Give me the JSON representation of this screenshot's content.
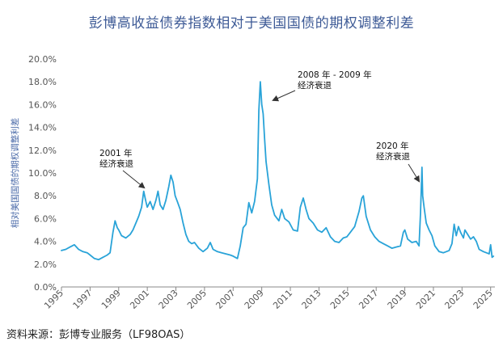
{
  "title": "彭博高收益债券指数相对于美国国债的期权调整利差",
  "source": "资料来源：彭博专业服务（LF98OAS）",
  "colors": {
    "line": "#29a3d8",
    "title": "#3d5a96",
    "annotation": "#111111",
    "axis": "#555555",
    "ylabel": "#4a6aa8"
  },
  "chart_data": {
    "type": "line",
    "title": "彭博高收益债券指数相对于美国国债的期权调整利差",
    "xlabel": "",
    "ylabel": "相对美国国债的期权调整利差",
    "xlim": [
      1995,
      2025.3
    ],
    "ylim": [
      0,
      20
    ],
    "grid": false,
    "y_ticks": [
      "0.0%",
      "2.0%",
      "4.0%",
      "6.0%",
      "8.0%",
      "10.0%",
      "12.0%",
      "14.0%",
      "16.0%",
      "18.0%",
      "20.0%"
    ],
    "x_ticks": [
      "1995",
      "1997",
      "1999",
      "2001",
      "2003",
      "2005",
      "2007",
      "2009",
      "2011",
      "2013",
      "2015",
      "2017",
      "2019",
      "2021",
      "2023",
      "2025"
    ],
    "annotations": [
      {
        "lines": [
          "2001 年",
          "经济衰退"
        ],
        "x": 2000.4,
        "y": 8.5
      },
      {
        "lines": [
          "2008 年 - 2009 年",
          "经济衰退"
        ],
        "x": 2008.7,
        "y": 16.5
      },
      {
        "lines": [
          "2020 年",
          "经济衰退"
        ],
        "x": 2020.0,
        "y": 9.1
      }
    ],
    "series": [
      {
        "x": [
          1995.0,
          1995.3,
          1995.6,
          1995.9,
          1996.2,
          1996.5,
          1996.8,
          1997.0,
          1997.3,
          1997.6,
          1997.9,
          1998.2,
          1998.4,
          1998.6,
          1998.75,
          1998.9,
          1999.0,
          1999.2,
          1999.5,
          1999.8,
          2000.0,
          2000.2,
          2000.4,
          2000.6,
          2000.75,
          2000.9,
          2001.0,
          2001.2,
          2001.4,
          2001.6,
          2001.75,
          2001.9,
          2002.1,
          2002.3,
          2002.5,
          2002.65,
          2002.8,
          2002.95,
          2003.1,
          2003.3,
          2003.5,
          2003.7,
          2003.9,
          2004.1,
          2004.3,
          2004.6,
          2004.9,
          2005.2,
          2005.4,
          2005.6,
          2005.9,
          2006.2,
          2006.5,
          2006.8,
          2007.0,
          2007.3,
          2007.5,
          2007.7,
          2007.9,
          2008.1,
          2008.3,
          2008.5,
          2008.7,
          2008.8,
          2008.9,
          2009.0,
          2009.1,
          2009.2,
          2009.3,
          2009.5,
          2009.7,
          2009.9,
          2010.2,
          2010.4,
          2010.6,
          2010.9,
          2011.2,
          2011.5,
          2011.7,
          2011.9,
          2012.1,
          2012.3,
          2012.6,
          2012.9,
          2013.2,
          2013.5,
          2013.8,
          2014.1,
          2014.4,
          2014.7,
          2014.95,
          2015.2,
          2015.5,
          2015.8,
          2016.0,
          2016.1,
          2016.3,
          2016.6,
          2016.9,
          2017.2,
          2017.5,
          2017.8,
          2018.1,
          2018.4,
          2018.7,
          2018.9,
          2019.0,
          2019.2,
          2019.5,
          2019.8,
          2020.0,
          2020.1,
          2020.2,
          2020.25,
          2020.35,
          2020.5,
          2020.7,
          2020.9,
          2021.1,
          2021.4,
          2021.7,
          2021.9,
          2022.1,
          2022.3,
          2022.45,
          2022.6,
          2022.75,
          2022.9,
          2023.1,
          2023.2,
          2023.4,
          2023.6,
          2023.8,
          2024.0,
          2024.2,
          2024.5,
          2024.7,
          2024.9,
          2025.0,
          2025.1,
          2025.2
        ],
        "values": [
          3.2,
          3.3,
          3.5,
          3.7,
          3.3,
          3.1,
          3.0,
          2.8,
          2.5,
          2.4,
          2.6,
          2.8,
          3.0,
          4.8,
          5.8,
          5.2,
          5.0,
          4.5,
          4.3,
          4.6,
          5.0,
          5.6,
          6.2,
          7.0,
          8.4,
          7.5,
          7.0,
          7.5,
          6.8,
          7.6,
          8.4,
          7.2,
          6.8,
          7.6,
          8.8,
          9.8,
          9.2,
          8.0,
          7.5,
          6.8,
          5.6,
          4.6,
          4.0,
          3.8,
          3.9,
          3.4,
          3.1,
          3.4,
          3.9,
          3.3,
          3.1,
          3.0,
          2.9,
          2.8,
          2.7,
          2.5,
          3.6,
          5.2,
          5.5,
          7.4,
          6.5,
          7.5,
          9.5,
          15.5,
          18.0,
          16.0,
          15.2,
          13.0,
          11.0,
          9.0,
          7.2,
          6.3,
          5.8,
          6.8,
          6.0,
          5.7,
          5.0,
          4.9,
          7.0,
          7.8,
          6.8,
          6.0,
          5.6,
          5.0,
          4.8,
          5.2,
          4.4,
          4.0,
          3.9,
          4.3,
          4.4,
          4.8,
          5.3,
          6.6,
          7.8,
          8.0,
          6.2,
          5.0,
          4.4,
          4.0,
          3.8,
          3.6,
          3.4,
          3.5,
          3.6,
          4.8,
          5.0,
          4.2,
          3.9,
          4.0,
          3.6,
          6.5,
          10.5,
          8.0,
          7.0,
          5.6,
          5.0,
          4.5,
          3.6,
          3.1,
          3.0,
          3.1,
          3.2,
          3.8,
          5.5,
          4.5,
          5.3,
          4.8,
          4.3,
          5.0,
          4.6,
          4.2,
          4.4,
          4.0,
          3.3,
          3.1,
          3.0,
          2.9,
          3.7,
          2.6,
          2.7
        ]
      }
    ]
  }
}
